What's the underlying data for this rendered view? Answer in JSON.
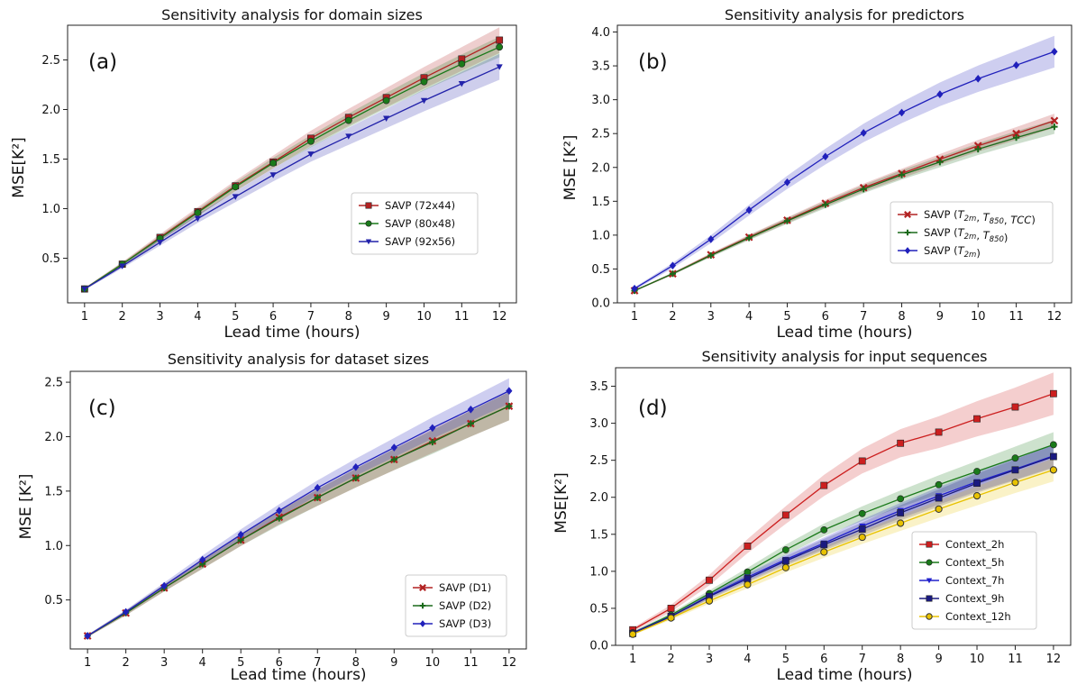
{
  "chart_data": [
    {
      "type": "line",
      "panel_label": "(a)",
      "title": "Sensitivity analysis for domain sizes",
      "xlabel": "Lead time (hours)",
      "ylabel": "MSE[K²]",
      "x": [
        1,
        2,
        3,
        4,
        5,
        6,
        7,
        8,
        9,
        10,
        11,
        12
      ],
      "ylim": [
        0.05,
        2.85
      ],
      "yticks": [
        "0.5",
        "1.0",
        "1.5",
        "2.0",
        "2.5"
      ],
      "legend_position": "center-right",
      "series": [
        {
          "name": "SAVP (72x44)",
          "color": "#b22222",
          "marker": "square",
          "band": 0.1,
          "values": [
            0.19,
            0.44,
            0.71,
            0.97,
            1.23,
            1.47,
            1.71,
            1.92,
            2.12,
            2.32,
            2.51,
            2.7
          ]
        },
        {
          "name": "SAVP (80x48)",
          "color": "#1a7a1a",
          "marker": "circle",
          "band": 0.08,
          "values": [
            0.19,
            0.44,
            0.7,
            0.96,
            1.22,
            1.46,
            1.68,
            1.89,
            2.09,
            2.28,
            2.46,
            2.63
          ]
        },
        {
          "name": "SAVP (92x56)",
          "color": "#2222aa",
          "marker": "triangle-down",
          "band": 0.1,
          "values": [
            0.19,
            0.42,
            0.66,
            0.9,
            1.12,
            1.34,
            1.55,
            1.73,
            1.91,
            2.09,
            2.26,
            2.43
          ]
        }
      ]
    },
    {
      "type": "line",
      "panel_label": "(b)",
      "title": "Sensitivity analysis for predictors",
      "xlabel": "Lead time (hours)",
      "ylabel": "MSE [K²]",
      "x": [
        1,
        2,
        3,
        4,
        5,
        6,
        7,
        8,
        9,
        10,
        11,
        12
      ],
      "ylim": [
        0.0,
        4.1
      ],
      "yticks": [
        "0.0",
        "0.5",
        "1.0",
        "1.5",
        "2.0",
        "2.5",
        "3.0",
        "3.5",
        "4.0"
      ],
      "legend_position": "center-right",
      "series": [
        {
          "name": "SAVP (T2m, T850, TCC)",
          "color": "#b22222",
          "marker": "x",
          "band": 0.08,
          "values": [
            0.18,
            0.43,
            0.71,
            0.97,
            1.22,
            1.47,
            1.7,
            1.91,
            2.12,
            2.32,
            2.5,
            2.69
          ]
        },
        {
          "name": "SAVP (T2m, T850)",
          "color": "#1a6a1a",
          "marker": "plus",
          "band": 0.08,
          "values": [
            0.18,
            0.43,
            0.7,
            0.96,
            1.21,
            1.45,
            1.68,
            1.89,
            2.08,
            2.27,
            2.44,
            2.6
          ]
        },
        {
          "name": "SAVP (T2m)",
          "color": "#2020bb",
          "marker": "diamond",
          "band": 0.18,
          "values": [
            0.21,
            0.55,
            0.94,
            1.37,
            1.78,
            2.16,
            2.51,
            2.81,
            3.08,
            3.31,
            3.51,
            3.71
          ]
        }
      ]
    },
    {
      "type": "line",
      "panel_label": "(c)",
      "title": "Sensitivity analysis for dataset sizes",
      "xlabel": "Lead time (hours)",
      "ylabel": "MSE [K²]",
      "x": [
        1,
        2,
        3,
        4,
        5,
        6,
        7,
        8,
        9,
        10,
        11,
        12
      ],
      "ylim": [
        0.05,
        2.6
      ],
      "yticks": [
        "0.5",
        "1.0",
        "1.5",
        "2.0",
        "2.5"
      ],
      "legend_position": "center-right",
      "series": [
        {
          "name": "SAVP (D1)",
          "color": "#b22222",
          "marker": "x",
          "band": 0.1,
          "values": [
            0.17,
            0.38,
            0.61,
            0.83,
            1.05,
            1.26,
            1.44,
            1.62,
            1.79,
            1.96,
            2.12,
            2.28
          ]
        },
        {
          "name": "SAVP (D2)",
          "color": "#1a6a1a",
          "marker": "plus",
          "band": 0.1,
          "values": [
            0.17,
            0.38,
            0.61,
            0.83,
            1.05,
            1.25,
            1.44,
            1.62,
            1.79,
            1.95,
            2.12,
            2.28
          ]
        },
        {
          "name": "SAVP (D3)",
          "color": "#2020bb",
          "marker": "diamond",
          "band": 0.09,
          "values": [
            0.17,
            0.39,
            0.63,
            0.87,
            1.1,
            1.32,
            1.53,
            1.72,
            1.9,
            2.08,
            2.25,
            2.42
          ]
        }
      ]
    },
    {
      "type": "line",
      "panel_label": "(d)",
      "title": "Sensitivity analysis for input sequences",
      "xlabel": "Lead time (hours)",
      "ylabel": "MSE[K²]",
      "x": [
        1,
        2,
        3,
        4,
        5,
        6,
        7,
        8,
        9,
        10,
        11,
        12
      ],
      "ylim": [
        0.0,
        3.75
      ],
      "yticks": [
        "0.0",
        "0.5",
        "1.0",
        "1.5",
        "2.0",
        "2.5",
        "3.0",
        "3.5"
      ],
      "legend_position": "center-right",
      "series": [
        {
          "name": "Context_2h",
          "color": "#cc1f1f",
          "marker": "square",
          "band": 0.22,
          "values": [
            0.21,
            0.5,
            0.88,
            1.34,
            1.76,
            2.16,
            2.49,
            2.73,
            2.88,
            3.06,
            3.22,
            3.4
          ]
        },
        {
          "name": "Context_5h",
          "color": "#1a7a1a",
          "marker": "circle",
          "band": 0.13,
          "values": [
            0.17,
            0.41,
            0.7,
            0.99,
            1.29,
            1.56,
            1.78,
            1.98,
            2.17,
            2.35,
            2.53,
            2.71
          ]
        },
        {
          "name": "Context_7h",
          "color": "#2020cc",
          "marker": "triangle-down",
          "band": 0.12,
          "values": [
            0.17,
            0.39,
            0.67,
            0.92,
            1.16,
            1.38,
            1.61,
            1.82,
            2.02,
            2.21,
            2.38,
            2.56
          ]
        },
        {
          "name": "Context_9h",
          "color": "#1a1a80",
          "marker": "square",
          "band": 0.12,
          "values": [
            0.16,
            0.39,
            0.66,
            0.9,
            1.14,
            1.36,
            1.57,
            1.79,
            1.99,
            2.19,
            2.37,
            2.55
          ]
        },
        {
          "name": "Context_12h",
          "color": "#e8c200",
          "marker": "circle-open",
          "band": 0.12,
          "values": [
            0.15,
            0.37,
            0.6,
            0.82,
            1.05,
            1.26,
            1.46,
            1.65,
            1.84,
            2.02,
            2.2,
            2.37
          ]
        }
      ]
    }
  ]
}
